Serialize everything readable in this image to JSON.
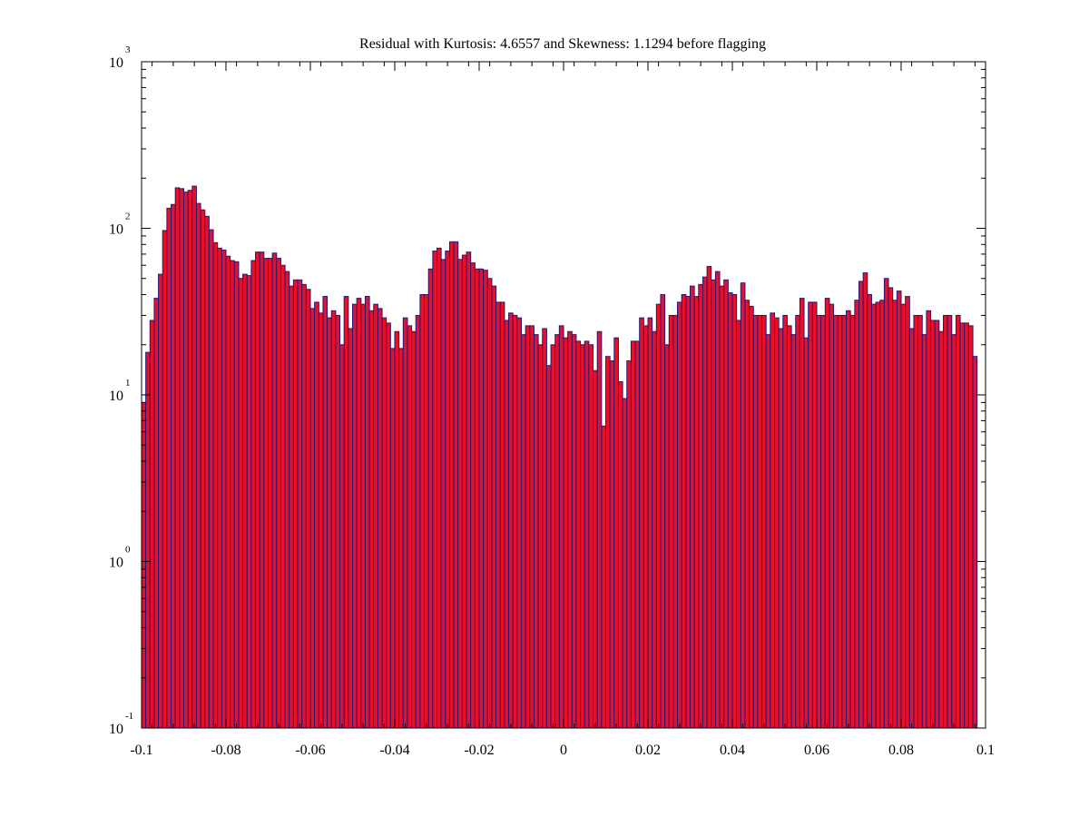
{
  "chart_data": {
    "type": "bar",
    "title": "Residual with Kurtosis: 4.6557 and Skewness: 1.1294 before flagging",
    "xlabel": "",
    "ylabel": "",
    "xlim": [
      -0.1,
      0.1
    ],
    "ylim": [
      0.1,
      1000
    ],
    "y_scale": "log",
    "grid": false,
    "legend": "none",
    "bar_fill": "#e5112a",
    "bar_edge": "#2a1670",
    "x_ticks": [
      "-0.1",
      "-0.08",
      "-0.06",
      "-0.04",
      "-0.02",
      "0",
      "0.02",
      "0.04",
      "0.06",
      "0.08",
      "0.1"
    ],
    "x_tick_values": [
      -0.1,
      -0.08,
      -0.06,
      -0.04,
      -0.02,
      0,
      0.02,
      0.04,
      0.06,
      0.08,
      0.1
    ],
    "y_ticks": [
      {
        "base": "10",
        "exp": "-1",
        "value": 0.1
      },
      {
        "base": "10",
        "exp": "0",
        "value": 1
      },
      {
        "base": "10",
        "exp": "1",
        "value": 10
      },
      {
        "base": "10",
        "exp": "2",
        "value": 100
      },
      {
        "base": "10",
        "exp": "3",
        "value": 1000
      }
    ],
    "bin_width": 0.001,
    "x_start": -0.1,
    "values": [
      9,
      18,
      28,
      38,
      53,
      97,
      132,
      139,
      175,
      173,
      165,
      169,
      179,
      141,
      129,
      118,
      98,
      82,
      76,
      74,
      68,
      64,
      63,
      50,
      53,
      52,
      64,
      72,
      72,
      66,
      66,
      71,
      66,
      60,
      55,
      45,
      49,
      49,
      46,
      43,
      33,
      36,
      31,
      39,
      29,
      32,
      30,
      20,
      39,
      25,
      35,
      38,
      35,
      39,
      32,
      35,
      33,
      29,
      27,
      19,
      24,
      19,
      29,
      26,
      24,
      30,
      40,
      40,
      57,
      73,
      76,
      65,
      73,
      83,
      83,
      65,
      69,
      72,
      62,
      57,
      57,
      56,
      50,
      45,
      36,
      36,
      28,
      31,
      30,
      29,
      23,
      26,
      26,
      23,
      20,
      25,
      15,
      20,
      23,
      26,
      22,
      24,
      23,
      21,
      20,
      21,
      20,
      14,
      24,
      6.5,
      17,
      16,
      22,
      12,
      9.5,
      16,
      21,
      21,
      29,
      26,
      29,
      24,
      35,
      40,
      20,
      30,
      30,
      36,
      40,
      39,
      45,
      39,
      46,
      51,
      59,
      49,
      55,
      45,
      49,
      41,
      40,
      28,
      47,
      37,
      34,
      30,
      30,
      30,
      23,
      31,
      29,
      25,
      30,
      26,
      23,
      30,
      38,
      22,
      36,
      36,
      30,
      30,
      38,
      35,
      30,
      30,
      30,
      32,
      30,
      37,
      48,
      54,
      40,
      35,
      36,
      37,
      50,
      44,
      37,
      42,
      35,
      39,
      25,
      30,
      30,
      23,
      32,
      28,
      28,
      24,
      30,
      30,
      23,
      30,
      27,
      27,
      26,
      17
    ]
  }
}
